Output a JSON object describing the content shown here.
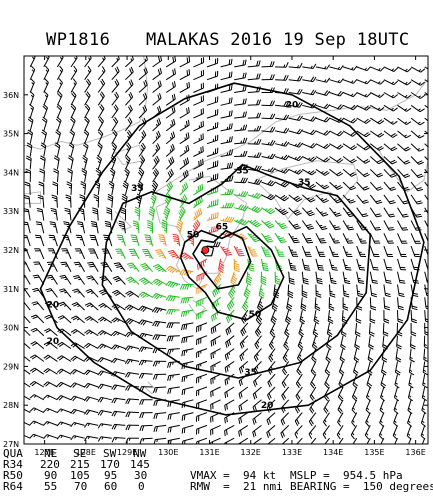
{
  "header": {
    "storm_id": "WP1816",
    "title": "MALAKAS 2016 19 Sep 18UTC"
  },
  "map": {
    "lat_labels": [
      "36N",
      "35N",
      "34N",
      "33N",
      "32N",
      "31N",
      "30N",
      "29N",
      "28N",
      "27N"
    ],
    "lon_labels": [
      "127E",
      "128E",
      "129E",
      "130E",
      "131E",
      "132E",
      "133E",
      "134E",
      "135E",
      "136E"
    ],
    "lat_range": [
      27,
      37
    ],
    "lon_range": [
      126.5,
      136.3
    ],
    "center": {
      "lat": 32.0,
      "lon": 130.9
    },
    "contour_labels": [
      {
        "text": "20",
        "lon": 133.0,
        "lat": 35.75
      },
      {
        "text": "35",
        "lon": 129.25,
        "lat": 33.6
      },
      {
        "text": "35",
        "lon": 131.8,
        "lat": 34.05
      },
      {
        "text": "35",
        "lon": 133.3,
        "lat": 33.75
      },
      {
        "text": "50",
        "lon": 130.6,
        "lat": 32.4
      },
      {
        "text": "65",
        "lon": 131.3,
        "lat": 32.6
      },
      {
        "text": "50",
        "lon": 132.1,
        "lat": 30.35
      },
      {
        "text": "20",
        "lon": 127.2,
        "lat": 30.6
      },
      {
        "text": "20",
        "lon": 127.2,
        "lat": 29.65
      },
      {
        "text": "35",
        "lon": 132.0,
        "lat": 28.85
      },
      {
        "text": "20",
        "lon": 132.4,
        "lat": 28.0
      }
    ],
    "colors": {
      "wind_lt34": "#000000",
      "wind_34_50": "#22bb22",
      "wind_50_64": "#ee9922",
      "wind_gt64": "#ee3333",
      "land": "#bbbbbb",
      "center_mark": "#ff2222"
    }
  },
  "footer": {
    "qua_label": "QUA",
    "quadrants": [
      "NE",
      "SE",
      "SW",
      "NW"
    ],
    "rows": [
      {
        "label": "R34",
        "values": [
          "220",
          "215",
          "170",
          "145"
        ]
      },
      {
        "label": "R50",
        "values": [
          "90",
          "105",
          "95",
          "30"
        ]
      },
      {
        "label": "R64",
        "values": [
          "55",
          "70",
          "60",
          "0"
        ]
      }
    ],
    "vmax_text": "VMAX =  94 kt",
    "mslp_text": "MSLP =  954.5 hPa",
    "rmw_text": "RMW  =  21 nmi",
    "bearing_text": "BEARING =  150 degrees"
  }
}
